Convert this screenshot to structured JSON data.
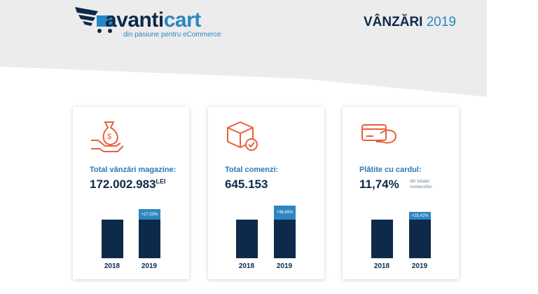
{
  "header": {
    "logo_primary": "avanti",
    "logo_secondary": "cart",
    "tagline": "din pasiune pentru eCommerce",
    "title_bold": "VÂNZĂRI",
    "title_year": "2019"
  },
  "cards": [
    {
      "label": "Total vânzări magazine:",
      "value": "172.002.983",
      "unit": "LEI",
      "increase": "+27,53%",
      "years": [
        "2018",
        "2019"
      ]
    },
    {
      "label": "Total comenzi:",
      "value": "645.153",
      "increase": "+38,46%",
      "years": [
        "2018",
        "2019"
      ]
    },
    {
      "label": "Plătite cu cardul:",
      "value": "11,74%",
      "note": "din totalul comenzilor",
      "increase": "+25,42%",
      "years": [
        "2018",
        "2019"
      ]
    }
  ]
}
